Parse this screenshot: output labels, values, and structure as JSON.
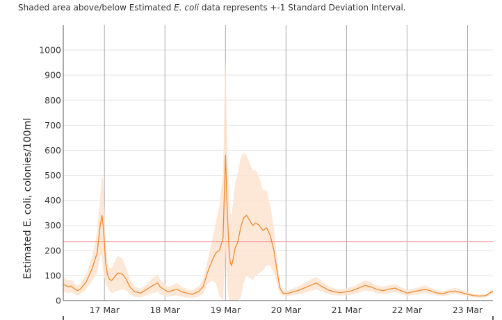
{
  "caption": {
    "before": "Shaded area above/below Estimated ",
    "species": "E. coli",
    "after": " data represents +-1 Standard Deviation Interval."
  },
  "colors": {
    "line": "#f08a2c",
    "band": "#fde3d0",
    "threshold": "#f29a9a",
    "grid_h": "#e3e3e3",
    "grid_v": "#a8a8a8",
    "axis": "#555555"
  },
  "chart_data": {
    "type": "line",
    "title": "",
    "xlabel": "",
    "ylabel": "Estimated E. coli, colonies/100ml",
    "xlim_days": [
      16.32,
      23.42
    ],
    "ylim": [
      0,
      1100
    ],
    "yticks": [
      0,
      100,
      200,
      300,
      400,
      500,
      600,
      700,
      800,
      900,
      1000
    ],
    "xticks": [
      {
        "day": 17,
        "label": "17 Mar"
      },
      {
        "day": 18,
        "label": "18 Mar"
      },
      {
        "day": 19,
        "label": "19 Mar"
      },
      {
        "day": 20,
        "label": "20 Mar"
      },
      {
        "day": 21,
        "label": "21 Mar"
      },
      {
        "day": 22,
        "label": "22 Mar"
      },
      {
        "day": 23,
        "label": "23 Mar"
      }
    ],
    "threshold": 235,
    "grid": true,
    "series": [
      {
        "x": [
          16.32,
          16.4,
          16.45,
          16.5,
          16.55,
          16.6,
          16.7,
          16.8,
          16.88,
          16.93,
          16.96,
          16.98,
          17.0,
          17.02,
          17.05,
          17.08,
          17.12,
          17.17,
          17.22,
          17.3,
          17.36,
          17.42,
          17.5,
          17.6,
          17.7,
          17.8,
          17.88,
          17.92,
          17.98,
          18.05,
          18.12,
          18.2,
          18.28,
          18.36,
          18.45,
          18.55,
          18.63,
          18.7,
          18.78,
          18.84,
          18.9,
          18.96,
          19.0,
          19.03,
          19.06,
          19.08,
          19.1,
          19.13,
          19.16,
          19.2,
          19.25,
          19.3,
          19.35,
          19.4,
          19.45,
          19.5,
          19.56,
          19.62,
          19.68,
          19.74,
          19.8,
          19.85,
          19.9,
          19.95,
          20.0,
          20.05,
          20.12,
          20.2,
          20.3,
          20.4,
          20.5,
          20.6,
          20.7,
          20.8,
          20.9,
          21.0,
          21.1,
          21.2,
          21.3,
          21.4,
          21.5,
          21.6,
          21.7,
          21.8,
          21.9,
          22.0,
          22.1,
          22.2,
          22.3,
          22.4,
          22.5,
          22.6,
          22.7,
          22.8,
          22.9,
          23.0,
          23.1,
          23.2,
          23.3,
          23.42
        ],
        "y": [
          65,
          55,
          58,
          48,
          40,
          45,
          75,
          130,
          190,
          300,
          340,
          300,
          230,
          150,
          105,
          85,
          80,
          95,
          110,
          105,
          85,
          55,
          35,
          30,
          45,
          60,
          70,
          55,
          45,
          35,
          40,
          45,
          35,
          30,
          25,
          35,
          55,
          110,
          160,
          190,
          200,
          250,
          580,
          350,
          200,
          150,
          140,
          170,
          210,
          230,
          290,
          330,
          340,
          320,
          300,
          310,
          300,
          280,
          290,
          260,
          200,
          120,
          50,
          30,
          28,
          30,
          35,
          40,
          50,
          60,
          70,
          55,
          42,
          35,
          32,
          35,
          40,
          50,
          60,
          55,
          45,
          40,
          45,
          50,
          40,
          30,
          35,
          40,
          45,
          38,
          30,
          28,
          35,
          38,
          32,
          25,
          20,
          18,
          20,
          38
        ],
        "std": [
          30,
          25,
          25,
          22,
          20,
          20,
          30,
          50,
          80,
          120,
          160,
          180,
          140,
          80,
          50,
          45,
          50,
          60,
          70,
          60,
          45,
          30,
          20,
          18,
          22,
          30,
          35,
          30,
          25,
          20,
          20,
          25,
          20,
          18,
          15,
          20,
          28,
          45,
          80,
          120,
          180,
          260,
          380,
          300,
          220,
          200,
          200,
          230,
          260,
          270,
          280,
          260,
          240,
          230,
          220,
          210,
          190,
          160,
          150,
          120,
          90,
          50,
          20,
          12,
          10,
          12,
          14,
          16,
          20,
          22,
          25,
          20,
          16,
          14,
          12,
          14,
          16,
          18,
          20,
          18,
          16,
          14,
          15,
          16,
          14,
          12,
          12,
          14,
          15,
          12,
          10,
          10,
          12,
          12,
          10,
          8,
          7,
          6,
          7,
          10
        ]
      }
    ]
  }
}
